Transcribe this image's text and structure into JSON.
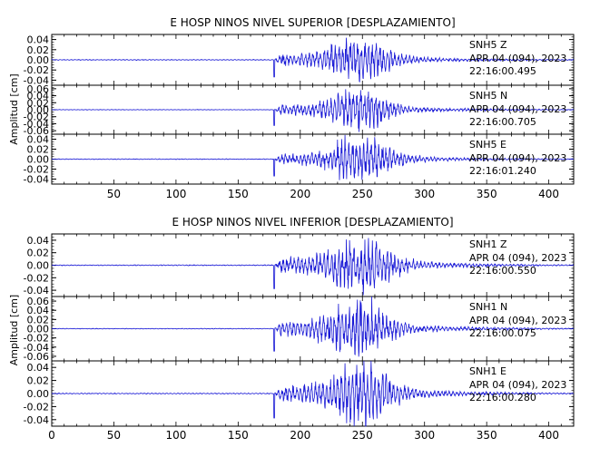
{
  "chart_data": [
    {
      "type": "line",
      "title": "E HOSP NINOS NIVEL SUPERIOR [DESPLAZAMIENTO]",
      "ylabel": "Amplitud [cm]",
      "xlim": [
        0,
        420
      ],
      "x_ticks": [
        "50",
        "100",
        "150",
        "200",
        "250",
        "300",
        "350",
        "400"
      ],
      "panels": [
        {
          "station": "SNH5",
          "component": "Z",
          "date": "APR 04 (094), 2023",
          "time": "22:16:00.495",
          "ylim": [
            -0.05,
            0.05
          ],
          "y_ticks": [
            "0.04",
            "0.02",
            "0.00",
            "-0.02",
            "-0.04"
          ],
          "onset_x": 179,
          "peak_x": 248,
          "peak_amp": 0.045,
          "noise_amp": 0.0008
        },
        {
          "station": "SNH5",
          "component": "N",
          "date": "APR 04 (094), 2023",
          "time": "22:16:00.705",
          "ylim": [
            -0.07,
            0.07
          ],
          "y_ticks": [
            "0.06",
            "0.04",
            "0.02",
            "0.00",
            "-0.02",
            "-0.04",
            "-0.06"
          ],
          "onset_x": 179,
          "peak_x": 248,
          "peak_amp": 0.06,
          "noise_amp": 0.0008
        },
        {
          "station": "SNH5",
          "component": "E",
          "date": "APR 04 (094), 2023",
          "time": "22:16:01.240",
          "ylim": [
            -0.05,
            0.05
          ],
          "y_ticks": [
            "0.04",
            "0.02",
            "0.00",
            "-0.02",
            "-0.04"
          ],
          "onset_x": 179,
          "peak_x": 250,
          "peak_amp": 0.045,
          "noise_amp": 0.0008
        }
      ]
    },
    {
      "type": "line",
      "title": "E HOSP NINOS NIVEL INFERIOR [DESPLAZAMIENTO]",
      "ylabel": "Amplitud [cm]",
      "xlim": [
        0,
        420
      ],
      "x_ticks": [
        "0",
        "50",
        "100",
        "150",
        "200",
        "250",
        "300",
        "350",
        "400"
      ],
      "panels": [
        {
          "station": "SNH1",
          "component": "Z",
          "date": "APR 04 (094), 2023",
          "time": "22:16:00.550",
          "ylim": [
            -0.05,
            0.05
          ],
          "y_ticks": [
            "0.04",
            "0.02",
            "0.00",
            "-0.02",
            "-0.04"
          ],
          "onset_x": 179,
          "peak_x": 250,
          "peak_amp": 0.05,
          "noise_amp": 0.0008
        },
        {
          "station": "SNH1",
          "component": "N",
          "date": "APR 04 (094), 2023",
          "time": "22:16:00.075",
          "ylim": [
            -0.07,
            0.07
          ],
          "y_ticks": [
            "0.06",
            "0.04",
            "0.02",
            "0.00",
            "-0.02",
            "-0.04",
            "-0.06"
          ],
          "onset_x": 179,
          "peak_x": 248,
          "peak_amp": 0.065,
          "noise_amp": 0.0008
        },
        {
          "station": "SNH1",
          "component": "E",
          "date": "APR 04 (094), 2023",
          "time": "22:16:00.280",
          "ylim": [
            -0.05,
            0.05
          ],
          "y_ticks": [
            "0.04",
            "0.02",
            "0.00",
            "-0.02",
            "-0.04"
          ],
          "onset_x": 179,
          "peak_x": 250,
          "peak_amp": 0.05,
          "noise_amp": 0.0008
        }
      ]
    }
  ],
  "colors": {
    "trace": "#1a1ad6",
    "axis": "#000000",
    "background": "#ffffff"
  }
}
